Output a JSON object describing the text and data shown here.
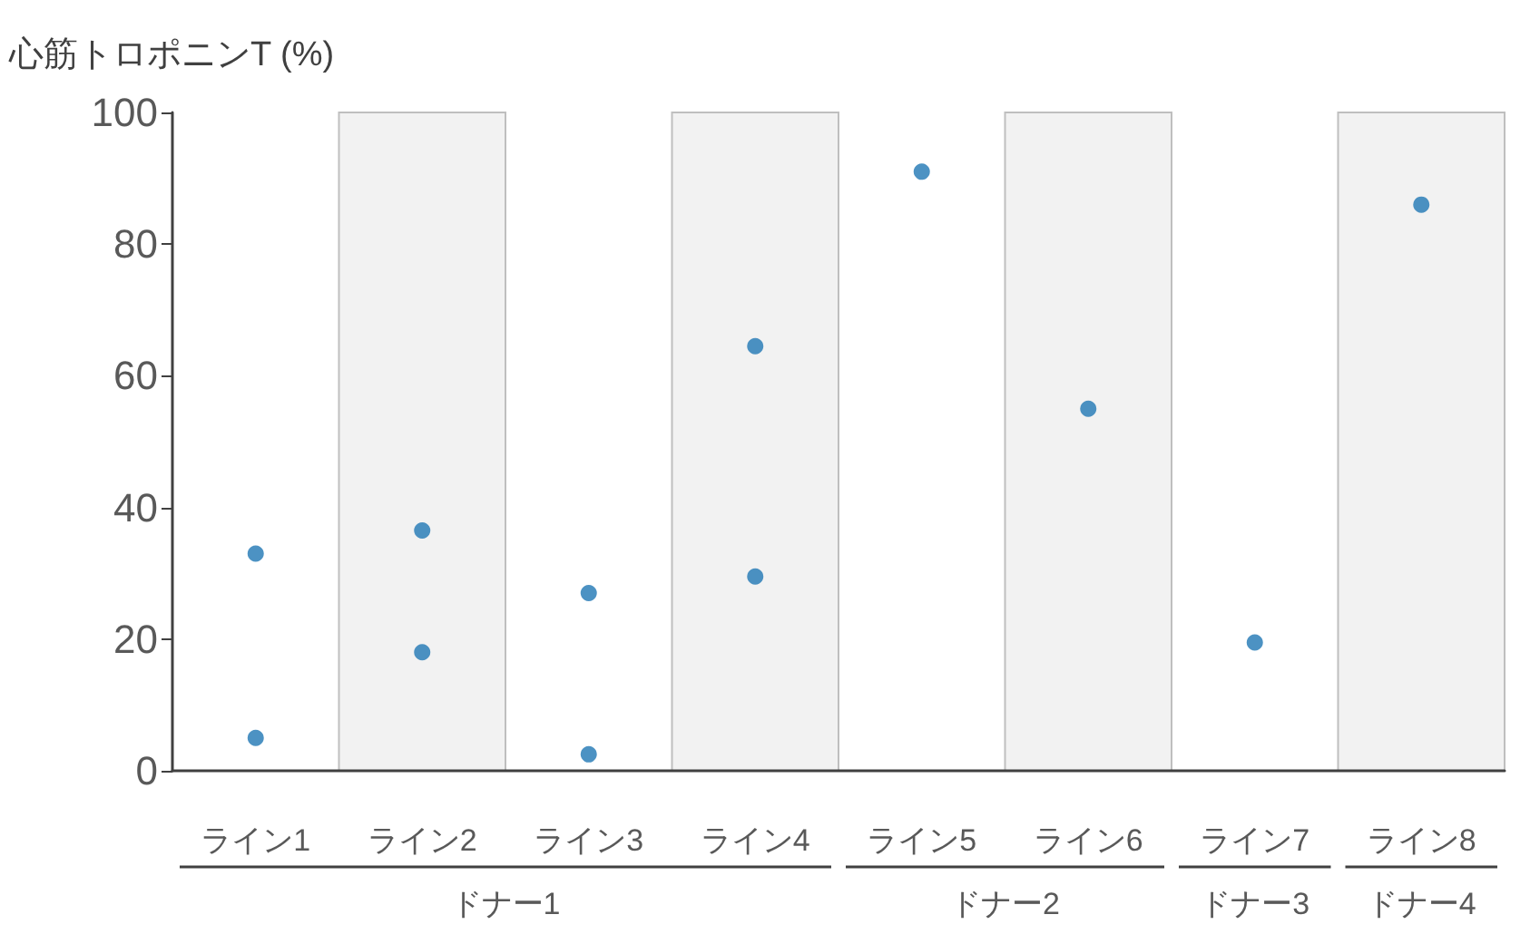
{
  "chart_data": {
    "type": "scatter",
    "ylabel": "心筋トロポニンT (%)",
    "categories": [
      "ライン1",
      "ライン2",
      "ライン3",
      "ライン4",
      "ライン5",
      "ライン6",
      "ライン7",
      "ライン8"
    ],
    "series": [
      {
        "color": "#1f77b4",
        "x": [
          "ライン1",
          "ライン1",
          "ライン2",
          "ライン2",
          "ライン3",
          "ライン3",
          "ライン4",
          "ライン4",
          "ライン5",
          "ライン6",
          "ライン7",
          "ライン8"
        ],
        "values": [
          33,
          5,
          36.5,
          18,
          27,
          2.5,
          64.5,
          29.5,
          91,
          55,
          19.5,
          86
        ]
      }
    ],
    "ylim": [
      0,
      100
    ],
    "yticks": [
      0,
      20,
      40,
      60,
      80,
      100
    ],
    "grid": false,
    "marker": "circle",
    "bands": [
      {
        "axis": "x",
        "from": "ライン2",
        "to": "ライン2",
        "color": "#f2f2f2"
      },
      {
        "axis": "x",
        "from": "ライン4",
        "to": "ライン4",
        "color": "#f2f2f2"
      },
      {
        "axis": "x",
        "from": "ライン6",
        "to": "ライン6",
        "color": "#f2f2f2"
      },
      {
        "axis": "x",
        "from": "ライン8",
        "to": "ライン8",
        "color": "#f2f2f2"
      }
    ],
    "annotations": [
      "ドナー1",
      "ドナー2",
      "ドナー3",
      "ドナー4"
    ]
  }
}
